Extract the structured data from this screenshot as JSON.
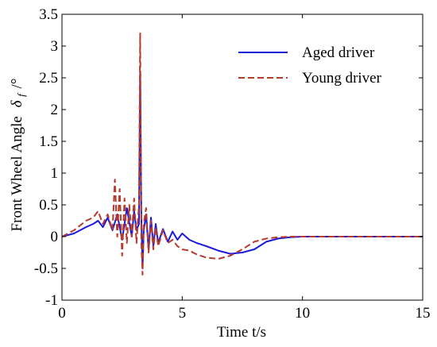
{
  "chart_data": {
    "type": "line",
    "xlabel": "Time t/s",
    "ylabel_prefix": "Front Wheel Angle",
    "ylabel_symbol": "δ",
    "ylabel_subscript": "f",
    "ylabel_unit": "/°",
    "xlim": [
      0,
      15
    ],
    "ylim": [
      -1,
      3.5
    ],
    "xticks": [
      0,
      5,
      10,
      15
    ],
    "yticks": [
      -1,
      -0.5,
      0,
      0.5,
      1,
      1.5,
      2,
      2.5,
      3,
      3.5
    ],
    "xtick_labels": [
      "0",
      "5",
      "10",
      "15"
    ],
    "ytick_labels": [
      "-1",
      "-0.5",
      "0",
      "0.5",
      "1",
      "1.5",
      "2",
      "2.5",
      "3",
      "3.5"
    ],
    "grid": false,
    "legend_position": "top-right",
    "series": [
      {
        "name": "Aged driver",
        "color": "#1a1adb",
        "dash": "solid",
        "x": [
          0,
          0.5,
          1.0,
          1.3,
          1.5,
          1.7,
          1.9,
          2.1,
          2.3,
          2.5,
          2.7,
          2.9,
          3.0,
          3.1,
          3.2,
          3.25,
          3.3,
          3.35,
          3.4,
          3.5,
          3.6,
          3.7,
          3.8,
          3.9,
          4.0,
          4.2,
          4.4,
          4.6,
          4.8,
          5.0,
          5.3,
          5.6,
          6.0,
          6.5,
          7.0,
          7.5,
          8.0,
          8.5,
          9.0,
          9.5,
          10.0,
          11.0,
          12.0,
          13.0,
          14.0,
          15.0
        ],
        "y": [
          0,
          0.05,
          0.15,
          0.2,
          0.25,
          0.15,
          0.3,
          0.1,
          0.35,
          -0.05,
          0.45,
          0.0,
          0.4,
          0.1,
          0.2,
          2.6,
          0.3,
          -0.5,
          0.1,
          0.35,
          -0.2,
          0.3,
          -0.15,
          0.2,
          -0.1,
          0.12,
          -0.08,
          0.08,
          -0.05,
          0.05,
          -0.05,
          -0.1,
          -0.15,
          -0.22,
          -0.27,
          -0.25,
          -0.2,
          -0.08,
          -0.03,
          -0.01,
          0,
          0,
          0,
          0,
          0,
          0
        ]
      },
      {
        "name": "Young driver",
        "color": "#b83a2a",
        "dash": "dashed",
        "x": [
          0,
          0.5,
          1.0,
          1.3,
          1.5,
          1.7,
          1.9,
          2.1,
          2.2,
          2.3,
          2.4,
          2.5,
          2.6,
          2.7,
          2.8,
          2.9,
          3.0,
          3.1,
          3.2,
          3.25,
          3.3,
          3.35,
          3.4,
          3.5,
          3.6,
          3.7,
          3.8,
          3.9,
          4.0,
          4.2,
          4.4,
          4.6,
          4.8,
          5.0,
          5.3,
          5.6,
          6.0,
          6.5,
          7.0,
          7.5,
          8.0,
          8.5,
          9.0,
          9.5,
          10.0,
          11.0,
          12.0,
          13.0,
          14.0,
          15.0
        ],
        "y": [
          0,
          0.1,
          0.25,
          0.3,
          0.4,
          0.2,
          0.35,
          0.1,
          0.9,
          0.0,
          0.75,
          -0.3,
          0.6,
          -0.1,
          0.5,
          0.0,
          0.6,
          -0.1,
          0.5,
          3.2,
          -0.1,
          -0.6,
          0.2,
          0.45,
          -0.25,
          0.25,
          -0.2,
          0.15,
          -0.15,
          0.1,
          -0.1,
          -0.05,
          -0.15,
          -0.2,
          -0.22,
          -0.28,
          -0.33,
          -0.35,
          -0.3,
          -0.2,
          -0.08,
          -0.03,
          -0.01,
          0,
          0,
          0,
          0,
          0,
          0,
          0
        ]
      }
    ]
  }
}
